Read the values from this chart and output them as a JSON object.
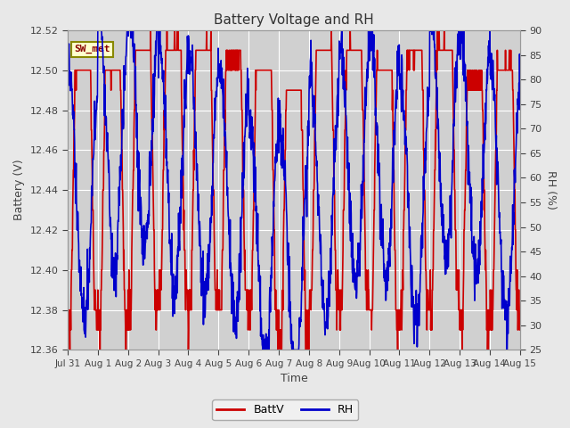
{
  "title": "Battery Voltage and RH",
  "xlabel": "Time",
  "ylabel_left": "Battery (V)",
  "ylabel_right": "RH (%)",
  "annotation": "SW_met",
  "ylim_left": [
    12.36,
    12.52
  ],
  "ylim_right": [
    25,
    90
  ],
  "yticks_left": [
    12.36,
    12.38,
    12.4,
    12.42,
    12.44,
    12.46,
    12.48,
    12.5,
    12.52
  ],
  "yticks_right": [
    25,
    30,
    35,
    40,
    45,
    50,
    55,
    60,
    65,
    70,
    75,
    80,
    85,
    90
  ],
  "xtick_labels": [
    "Jul 31",
    "Aug 1",
    "Aug 2",
    "Aug 3",
    "Aug 4",
    "Aug 5",
    "Aug 6",
    "Aug 7",
    "Aug 8",
    "Aug 9",
    "Aug 10",
    "Aug 11",
    "Aug 12",
    "Aug 13",
    "Aug 14",
    "Aug 15"
  ],
  "color_batt": "#cc0000",
  "color_rh": "#0000cc",
  "legend_labels": [
    "BattV",
    "RH"
  ],
  "bg_color": "#e8e8e8",
  "plot_bg_color": "#d0d0d0",
  "annotation_bg": "#ffffcc",
  "annotation_border": "#888800",
  "annotation_text_color": "#880000",
  "font_color": "#444444",
  "grid_color": "#ffffff",
  "line_width": 1.2,
  "title_fontsize": 11,
  "label_fontsize": 9,
  "tick_fontsize": 8,
  "xtick_fontsize": 7.5
}
